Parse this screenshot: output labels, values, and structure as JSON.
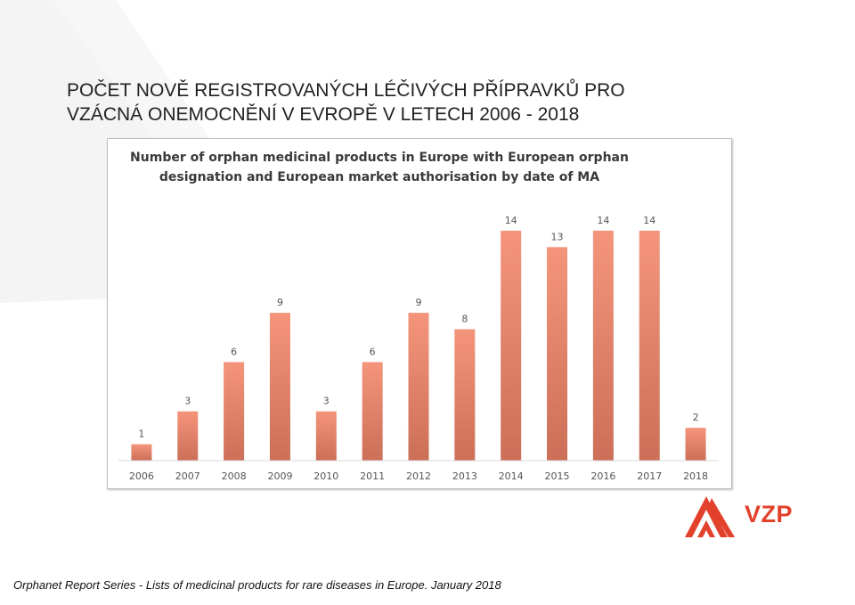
{
  "slide": {
    "title_line1": "POČET NOVĚ REGISTROVANÝCH LÉČIVÝCH PŘÍPRAVKŮ PRO",
    "title_line2": "VZÁCNÁ ONEMOCNĚNÍ V EVROPĚ V LETECH 2006 - 2018",
    "footer": "Orphanet Report Series - Lists of medicinal products for rare diseases in Europe. January 2018",
    "logo_text": "VZP"
  },
  "colors": {
    "bar_top": "#f4957b",
    "bar_bottom": "#cc6f58",
    "brand": "#e2412c"
  },
  "chart_data": {
    "type": "bar",
    "title_lines": [
      "Number of orphan medicinal products in Europe with European orphan",
      "designation and European market authorisation by date of MA"
    ],
    "categories": [
      "2006",
      "2007",
      "2008",
      "2009",
      "2010",
      "2011",
      "2012",
      "2013",
      "2014",
      "2015",
      "2016",
      "2017",
      "2018"
    ],
    "values": [
      1,
      3,
      6,
      9,
      3,
      6,
      9,
      8,
      14,
      13,
      14,
      14,
      2
    ],
    "xlabel": "",
    "ylabel": "",
    "ylim": [
      0,
      16
    ],
    "grid": false,
    "legend": "none"
  }
}
